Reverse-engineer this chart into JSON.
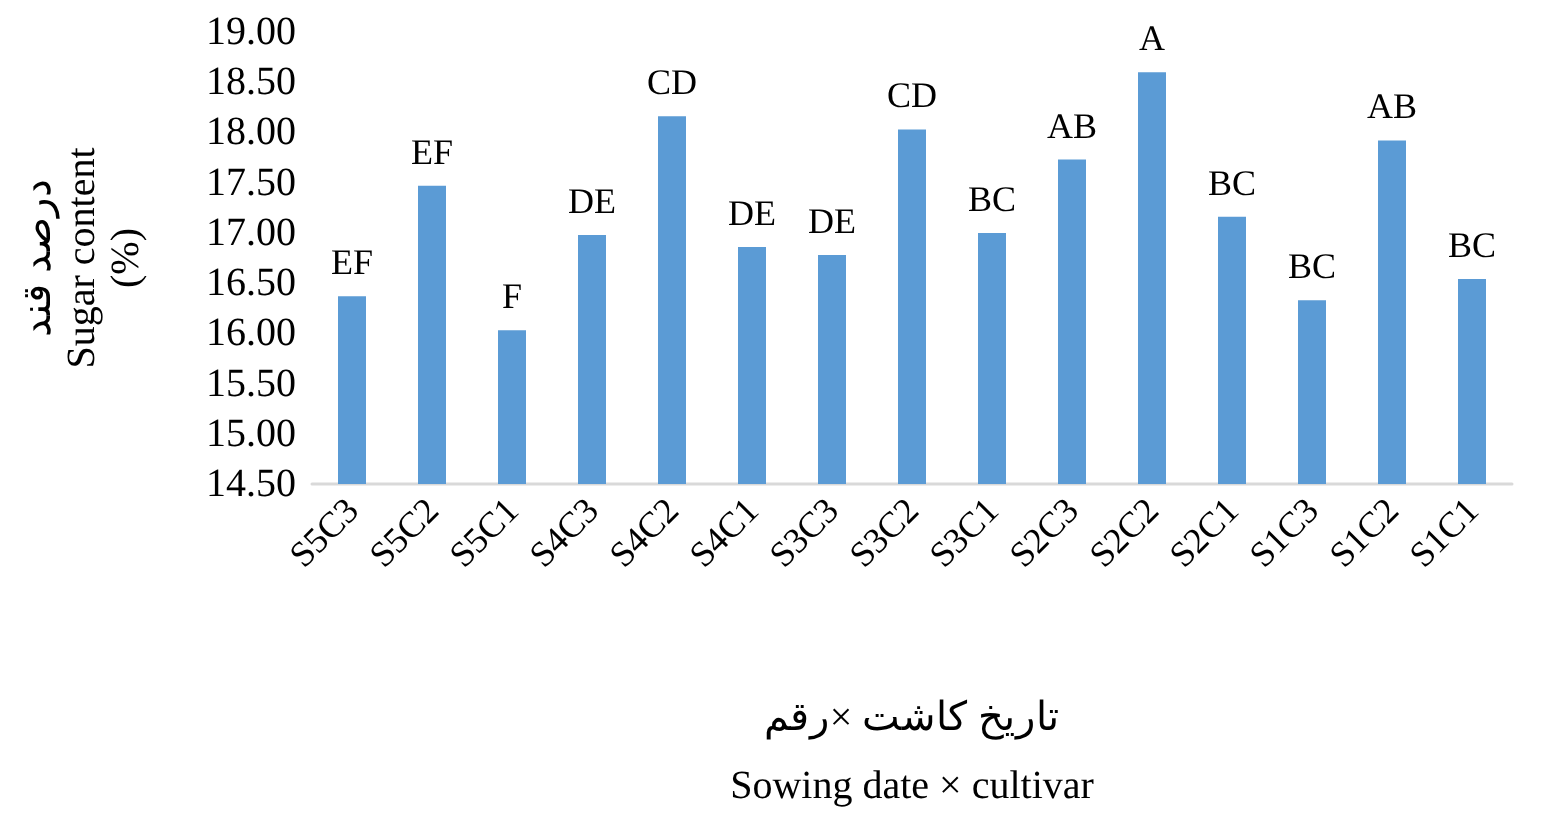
{
  "chart_data": {
    "type": "bar",
    "ylabel": "درصد قند\nSugar content\n(%)",
    "xlabel": "تاریخ کاشت ×رقم\nSowing date × cultivar",
    "categories": [
      "S5C3",
      "S5C2",
      "S5C1",
      "S4C3",
      "S4C2",
      "S4C1",
      "S3C3",
      "S3C2",
      "S3C1",
      "S2C3",
      "S2C2",
      "S2C1",
      "S1C3",
      "S1C2",
      "S1C1"
    ],
    "values": [
      16.37,
      17.47,
      16.03,
      16.98,
      18.16,
      16.86,
      16.78,
      18.03,
      17.0,
      17.73,
      18.6,
      17.16,
      16.33,
      17.92,
      16.54
    ],
    "value_labels": [
      "EF",
      "EF",
      "F",
      "DE",
      "CD",
      "DE",
      "DE",
      "CD",
      "BC",
      "AB",
      "A",
      "BC",
      "BC",
      "AB",
      "BC"
    ],
    "color": "#5b9bd5",
    "ylim": [
      14.5,
      19
    ],
    "yticks": [
      {
        "value": 14.5,
        "label": "14.50"
      },
      {
        "value": 15,
        "label": "15.00"
      },
      {
        "value": 15.5,
        "label": "15.50"
      },
      {
        "value": 16,
        "label": "16.00"
      },
      {
        "value": 16.5,
        "label": "16.50"
      },
      {
        "value": 17,
        "label": "17.00"
      },
      {
        "value": 17.5,
        "label": "17.50"
      },
      {
        "value": 18,
        "label": "18.00"
      },
      {
        "value": 18.5,
        "label": "18.50"
      },
      {
        "value": 19,
        "label": "19.00"
      }
    ],
    "grid": false
  }
}
